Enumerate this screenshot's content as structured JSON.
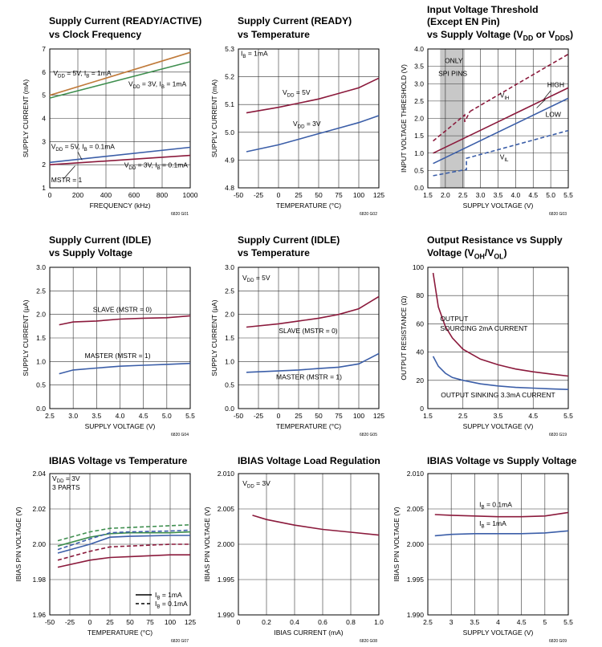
{
  "colors": {
    "red": "#8b1a3c",
    "blue": "#3b5ea8",
    "green": "#3f8f4f",
    "orange": "#c07a3a",
    "grid": "#333333",
    "shade": "#c8c8c8"
  },
  "chart_data": [
    {
      "id": "g01",
      "type": "line",
      "title": [
        "Supply Current (READY/ACTIVE)",
        "vs Clock Frequency"
      ],
      "xlabel": "FREQUENCY (kHz)",
      "ylabel": "SUPPLY CURRENT (mA)",
      "xlim": [
        0,
        1000
      ],
      "ylim": [
        1,
        7
      ],
      "xticks": [
        0,
        200,
        400,
        600,
        800,
        1000
      ],
      "yticks": [
        1,
        2,
        3,
        4,
        5,
        6,
        7
      ],
      "footnote": "6820 G01",
      "series": [
        {
          "name": "VDD = 5V, IB = 1mA",
          "color": "orange",
          "x": [
            0,
            1000
          ],
          "y": [
            5.0,
            6.85
          ]
        },
        {
          "name": "VDD = 3V, IB = 1mA",
          "color": "green",
          "x": [
            0,
            1000
          ],
          "y": [
            4.88,
            6.45
          ]
        },
        {
          "name": "VDD = 5V, IB = 0.1mA",
          "color": "blue",
          "x": [
            0,
            1000
          ],
          "y": [
            2.1,
            2.75
          ]
        },
        {
          "name": "VDD = 3V, IB = 0.1mA",
          "color": "red",
          "x": [
            0,
            1000
          ],
          "y": [
            2.0,
            2.4
          ]
        }
      ],
      "annotations": [
        "VDD = 5V, IB = 1mA",
        "VDD = 3V, IB = 1mA",
        "VDD = 5V, IB = 0.1mA",
        "VDD = 3V, IB = 0.1mA",
        "MSTR = 1"
      ]
    },
    {
      "id": "g02",
      "type": "line",
      "title": [
        "Supply Current (READY)",
        "vs Temperature"
      ],
      "xlabel": "TEMPERATURE (°C)",
      "ylabel": "SUPPLY CURRENT (mA)",
      "xlim": [
        -50,
        125
      ],
      "ylim": [
        4.8,
        5.3
      ],
      "xticks": [
        -50,
        -25,
        0,
        25,
        50,
        75,
        100,
        125
      ],
      "yticks": [
        4.8,
        4.9,
        5.0,
        5.1,
        5.2,
        5.3
      ],
      "footnote": "6820 G02",
      "series": [
        {
          "name": "VDD = 5V",
          "color": "red",
          "x": [
            -40,
            0,
            25,
            50,
            75,
            100,
            125
          ],
          "y": [
            5.07,
            5.09,
            5.105,
            5.12,
            5.14,
            5.16,
            5.195
          ]
        },
        {
          "name": "VDD = 3V",
          "color": "blue",
          "x": [
            -40,
            0,
            25,
            50,
            75,
            100,
            125
          ],
          "y": [
            4.93,
            4.955,
            4.975,
            4.995,
            5.015,
            5.035,
            5.06
          ]
        }
      ],
      "annotations": [
        "IB = 1mA",
        "VDD = 5V",
        "VDD = 3V"
      ]
    },
    {
      "id": "g03",
      "type": "line",
      "title": [
        "Input Voltage Threshold",
        "(Except EN Pin)",
        "vs Supply Voltage (VDD or VDDS)"
      ],
      "xlabel": "SUPPLY VOLTAGE (V)",
      "ylabel": "INPUT VOLTAGE THRESHOLD (V)",
      "xlim": [
        1.5,
        5.5
      ],
      "ylim": [
        0,
        4
      ],
      "xticks": [
        1.5,
        2.0,
        2.5,
        3.0,
        3.5,
        4.0,
        4.5,
        5.0,
        5.5
      ],
      "yticks": [
        0,
        0.5,
        1.0,
        1.5,
        2.0,
        2.5,
        3.0,
        3.5,
        4.0
      ],
      "shaded_region": [
        1.85,
        2.55
      ],
      "footnote": "6820 G03",
      "series": [
        {
          "name": "VIH dashed",
          "color": "red",
          "dash": true,
          "x": [
            1.65,
            2.2,
            2.55,
            2.55,
            2.7
          ],
          "y": [
            1.35,
            1.8,
            2.1,
            1.9,
            2.2
          ]
        },
        {
          "name": "VIH dashed upper",
          "color": "red",
          "dash": true,
          "x": [
            2.7,
            5.5
          ],
          "y": [
            2.2,
            3.85
          ]
        },
        {
          "name": "HIGH",
          "color": "red",
          "x": [
            1.65,
            5.5
          ],
          "y": [
            1.0,
            2.88
          ]
        },
        {
          "name": "LOW",
          "color": "blue",
          "x": [
            1.65,
            5.5
          ],
          "y": [
            0.7,
            2.58
          ]
        },
        {
          "name": "VIL dashed",
          "color": "blue",
          "dash": true,
          "x": [
            1.65,
            2.55,
            2.6,
            2.6,
            5.5
          ],
          "y": [
            0.35,
            0.52,
            0.52,
            0.85,
            1.65
          ]
        }
      ],
      "annotations": [
        "ONLY",
        "SPI PINS",
        "VIH",
        "HIGH",
        "LOW",
        "VIL"
      ]
    },
    {
      "id": "g04",
      "type": "line",
      "title": [
        "Supply Current (IDLE)",
        "vs Supply Voltage"
      ],
      "xlabel": "SUPPLY VOLTAGE (V)",
      "ylabel": "SUPPLY CURRENT (µA)",
      "xlim": [
        2.5,
        5.5
      ],
      "ylim": [
        0,
        3
      ],
      "xticks": [
        2.5,
        3.0,
        3.5,
        4.0,
        4.5,
        5.0,
        5.5
      ],
      "yticks": [
        0,
        0.5,
        1.0,
        1.5,
        2.0,
        2.5,
        3.0
      ],
      "footnote": "6820 G04",
      "series": [
        {
          "name": "SLAVE (MSTR = 0)",
          "color": "red",
          "x": [
            2.7,
            3.0,
            3.5,
            4.0,
            4.5,
            5.0,
            5.5
          ],
          "y": [
            1.78,
            1.84,
            1.86,
            1.9,
            1.92,
            1.93,
            1.97
          ]
        },
        {
          "name": "MASTER (MSTR = 1)",
          "color": "blue",
          "x": [
            2.7,
            3.0,
            3.5,
            4.0,
            4.5,
            5.0,
            5.5
          ],
          "y": [
            0.74,
            0.82,
            0.86,
            0.9,
            0.92,
            0.94,
            0.96
          ]
        }
      ],
      "annotations": [
        "SLAVE (MSTR = 0)",
        "MASTER (MSTR = 1)"
      ]
    },
    {
      "id": "g05",
      "type": "line",
      "title": [
        "Supply Current (IDLE)",
        "vs Temperature"
      ],
      "xlabel": "TEMPERATURE (°C)",
      "ylabel": "SUPPLY CURRENT (µA)",
      "xlim": [
        -50,
        125
      ],
      "ylim": [
        0,
        3
      ],
      "xticks": [
        -50,
        -25,
        0,
        25,
        50,
        75,
        100,
        125
      ],
      "yticks": [
        0,
        0.5,
        1.0,
        1.5,
        2.0,
        2.5,
        3.0
      ],
      "footnote": "6820 G05",
      "series": [
        {
          "name": "SLAVE (MSTR = 0)",
          "color": "red",
          "x": [
            -40,
            0,
            25,
            50,
            75,
            100,
            125
          ],
          "y": [
            1.73,
            1.8,
            1.86,
            1.92,
            2.0,
            2.12,
            2.38
          ]
        },
        {
          "name": "MASTER (MSTR = 1)",
          "color": "blue",
          "x": [
            -40,
            0,
            25,
            50,
            75,
            100,
            125
          ],
          "y": [
            0.77,
            0.8,
            0.82,
            0.85,
            0.88,
            0.95,
            1.17
          ]
        }
      ],
      "annotations": [
        "VDD = 5V",
        "SLAVE (MSTR = 0)",
        "MASTER (MSTR = 1)"
      ]
    },
    {
      "id": "g19",
      "type": "line",
      "title": [
        "Output Resistance vs Supply",
        "Voltage (VOH/VOL)"
      ],
      "xlabel": "SUPPLY VOLTAGE (V)",
      "ylabel": "OUTPUT RESISTANCE (Ω)",
      "xlim": [
        1.5,
        5.5
      ],
      "ylim": [
        0,
        100
      ],
      "xticks": [
        1.5,
        2.5,
        3.5,
        4.5,
        5.5
      ],
      "yticks": [
        0,
        20,
        40,
        60,
        80,
        100
      ],
      "footnote": "6820 G19",
      "series": [
        {
          "name": "OUTPUT SOURCING 2mA CURRENT",
          "color": "red",
          "x": [
            1.65,
            1.8,
            2.0,
            2.2,
            2.5,
            3.0,
            3.5,
            4.0,
            4.5,
            5.0,
            5.5
          ],
          "y": [
            96,
            72,
            58,
            50,
            42,
            35,
            31,
            28,
            26,
            24.5,
            23
          ]
        },
        {
          "name": "OUTPUT SINKING 3.3mA CURRENT",
          "color": "blue",
          "x": [
            1.65,
            1.8,
            2.0,
            2.2,
            2.5,
            3.0,
            3.5,
            4.0,
            4.5,
            5.0,
            5.5
          ],
          "y": [
            37,
            30,
            25,
            22,
            20,
            17.5,
            16,
            15,
            14.5,
            14,
            13.5
          ]
        }
      ],
      "annotations": [
        "OUTPUT",
        "SOURCING 2mA CURRENT",
        "OUTPUT SINKING 3.3mA CURRENT"
      ]
    },
    {
      "id": "g07",
      "type": "line",
      "title": [
        "IBIAS Voltage vs Temperature"
      ],
      "xlabel": "TEMPERATURE (°C)",
      "ylabel": "IBIAS PIN VOLTAGE (V)",
      "xlim": [
        -50,
        125
      ],
      "ylim": [
        1.96,
        2.04
      ],
      "xticks": [
        -50,
        -25,
        0,
        25,
        50,
        75,
        100,
        125
      ],
      "yticks": [
        1.96,
        1.98,
        2.0,
        2.02,
        2.04
      ],
      "footnote": "6820 G07",
      "series": [
        {
          "name": "green IB=0.1mA",
          "color": "green",
          "dash": true,
          "x": [
            -40,
            0,
            25,
            50,
            100,
            125
          ],
          "y": [
            2.002,
            2.007,
            2.009,
            2.0095,
            2.0105,
            2.011
          ]
        },
        {
          "name": "green IB=1mA",
          "color": "green",
          "x": [
            -40,
            0,
            25,
            50,
            100,
            125
          ],
          "y": [
            1.999,
            2.004,
            2.006,
            2.0065,
            2.0065,
            2.007
          ]
        },
        {
          "name": "blue IB=0.1mA",
          "color": "blue",
          "dash": true,
          "x": [
            -40,
            0,
            25,
            50,
            100,
            125
          ],
          "y": [
            1.997,
            2.003,
            2.0065,
            2.007,
            2.0075,
            2.008
          ]
        },
        {
          "name": "blue IB=1mA",
          "color": "blue",
          "x": [
            -40,
            0,
            25,
            50,
            100,
            125
          ],
          "y": [
            1.995,
            2.0,
            2.004,
            2.0045,
            2.005,
            2.005
          ]
        },
        {
          "name": "red IB=0.1mA",
          "color": "red",
          "dash": true,
          "x": [
            -40,
            0,
            25,
            50,
            100,
            125
          ],
          "y": [
            1.991,
            1.996,
            1.9985,
            1.999,
            2.0,
            2.0
          ]
        },
        {
          "name": "red IB=1mA",
          "color": "red",
          "x": [
            -40,
            0,
            25,
            50,
            100,
            125
          ],
          "y": [
            1.987,
            1.991,
            1.9925,
            1.993,
            1.994,
            1.994
          ]
        }
      ],
      "annotations": [
        "VDD = 3V",
        "3 PARTS"
      ],
      "legend": [
        {
          "label": "IB = 1mA",
          "dash": false
        },
        {
          "label": "IB = 0.1mA",
          "dash": true
        }
      ]
    },
    {
      "id": "g08",
      "type": "line",
      "title": [
        "IBIAS Voltage Load Regulation"
      ],
      "xlabel": "IBIAS CURRENT (mA)",
      "ylabel": "IBIAS PIN VOLTAGE (V)",
      "xlim": [
        0,
        1.0
      ],
      "ylim": [
        1.99,
        2.01
      ],
      "xticks": [
        0,
        0.2,
        0.4,
        0.6,
        0.8,
        1.0
      ],
      "yticks": [
        1.99,
        1.995,
        2.0,
        2.005,
        2.01
      ],
      "footnote": "6820 G08",
      "series": [
        {
          "name": "VDD = 3V",
          "color": "red",
          "x": [
            0.1,
            0.2,
            0.4,
            0.6,
            0.8,
            1.0
          ],
          "y": [
            2.0041,
            2.0035,
            2.0027,
            2.0021,
            2.0017,
            2.0013
          ]
        }
      ],
      "annotations": [
        "VDD = 3V"
      ]
    },
    {
      "id": "g09",
      "type": "line",
      "title": [
        "IBIAS Voltage vs Supply Voltage"
      ],
      "xlabel": "SUPPLY VOLTAGE (V)",
      "ylabel": "IBIAS PIN VOLTAGE (V)",
      "xlim": [
        2.5,
        5.5
      ],
      "ylim": [
        1.99,
        2.01
      ],
      "xticks": [
        2.5,
        3.0,
        3.5,
        4.0,
        4.5,
        5.0,
        5.5
      ],
      "xtick_labels": [
        "2.5",
        "3",
        "3.5",
        "4",
        "4.5",
        "5",
        "5.5"
      ],
      "yticks": [
        1.99,
        1.995,
        2.0,
        2.005,
        2.01
      ],
      "footnote": "6820 G09",
      "series": [
        {
          "name": "IB = 0.1mA",
          "color": "red",
          "x": [
            2.65,
            3.0,
            3.5,
            4.0,
            4.5,
            5.0,
            5.5
          ],
          "y": [
            2.0042,
            2.0041,
            2.004,
            2.0039,
            2.0039,
            2.004,
            2.0045
          ]
        },
        {
          "name": "IB = 1mA",
          "color": "blue",
          "x": [
            2.65,
            3.0,
            3.5,
            4.0,
            4.5,
            5.0,
            5.5
          ],
          "y": [
            2.0012,
            2.0014,
            2.0015,
            2.0015,
            2.0015,
            2.0016,
            2.0019
          ]
        }
      ],
      "annotations": [
        "IB = 0.1mA",
        "IB = 1mA"
      ]
    }
  ]
}
